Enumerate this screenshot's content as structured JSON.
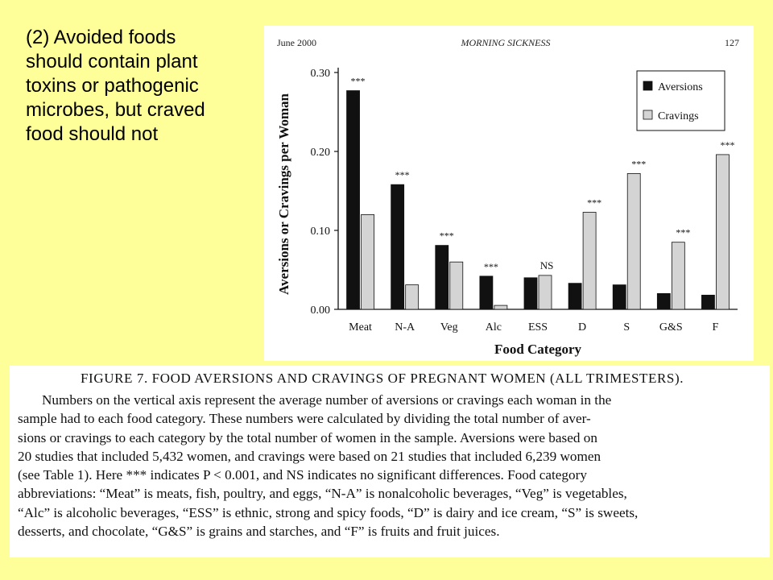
{
  "slide": {
    "text_lines": [
      "(2) Avoided foods",
      "should contain plant",
      "toxins or pathogenic",
      "microbes, but craved",
      "food should not"
    ]
  },
  "page_header": {
    "left": "June 2000",
    "center": "MORNING SICKNESS",
    "page_number": "127"
  },
  "chart_data": {
    "type": "bar",
    "categories": [
      "Meat",
      "N-A",
      "Veg",
      "Alc",
      "ESS",
      "D",
      "S",
      "G&S",
      "F"
    ],
    "series": [
      {
        "name": "Aversions",
        "color": "#111111",
        "values": [
          0.277,
          0.158,
          0.081,
          0.042,
          0.04,
          0.033,
          0.031,
          0.02,
          0.018
        ]
      },
      {
        "name": "Cravings",
        "color": "#d4d4d4",
        "values": [
          0.12,
          0.031,
          0.06,
          0.005,
          0.043,
          0.123,
          0.172,
          0.085,
          0.196
        ]
      }
    ],
    "annotations": [
      "***",
      "***",
      "***",
      "***",
      "NS",
      "***",
      "***",
      "***",
      "***"
    ],
    "xlabel": "Food Category",
    "ylabel": "Aversions or Cravings per Woman",
    "ylim": [
      0,
      0.3
    ],
    "yticks": [
      "0.00",
      "0.10",
      "0.20",
      "0.30"
    ],
    "grid": false,
    "legend_position": "top-right"
  },
  "caption": {
    "title": "FIGURE 7.   FOOD AVERSIONS AND CRAVINGS OF PREGNANT WOMEN (ALL TRIMESTERS).",
    "lines": [
      "Numbers on the vertical axis represent the average number of aversions or cravings each woman in the",
      "sample had to each food category. These numbers were calculated by dividing the total number of aver-",
      "sions or cravings to each category by the total number of women in the sample. Aversions were based on",
      "20 studies that included 5,432 women, and cravings were based on 21 studies that included 6,239 women",
      "(see Table 1). Here *** indicates P < 0.001, and NS indicates no significant differences. Food category",
      "abbreviations: “Meat” is meats, fish, poultry, and eggs, “N-A” is nonalcoholic beverages, “Veg” is vegetables,",
      "“Alc” is alcoholic beverages, “ESS” is ethnic, strong and spicy foods, “D” is dairy and ice cream, “S” is sweets,",
      "desserts, and chocolate, “G&S” is grains and starches, and “F” is fruits and fruit juices."
    ]
  }
}
